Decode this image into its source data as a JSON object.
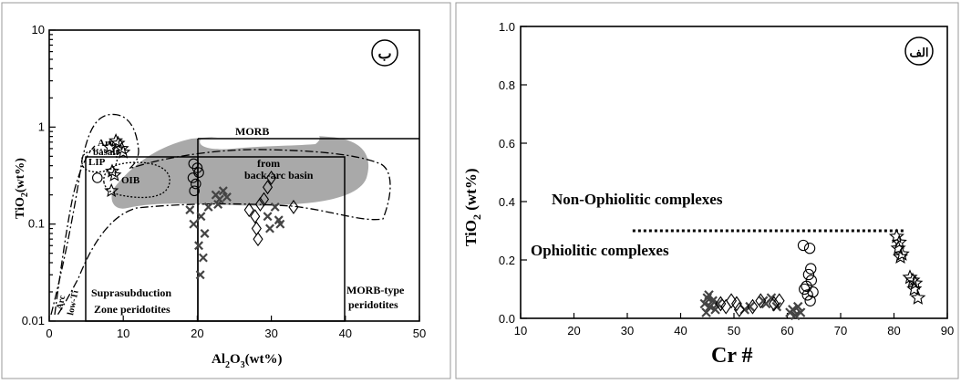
{
  "chart_data": [
    {
      "type": "scatter",
      "panel_mark": "ب",
      "xlabel": "Al",
      "xlabel_sub1": "2",
      "xlabel_mid": "O",
      "xlabel_sub2": "3",
      "xlabel_end": "(wt%)",
      "ylabel": "TiO",
      "ylabel_sub": "2",
      "ylabel_end": "(wt%)",
      "xlim": [
        0,
        50
      ],
      "ylim": [
        0.01,
        10
      ],
      "yscale": "log",
      "x_ticks": [
        "0",
        "10",
        "20",
        "30",
        "40",
        "50"
      ],
      "y_ticks": [
        "0.01",
        "0.1",
        "1",
        "10"
      ],
      "field_labels": {
        "lip": "LIP",
        "oib": "OIB",
        "morb": "MORB",
        "arc_basalt_1": "Arc",
        "arc_basalt_2": "basalt",
        "backarc_1": "from",
        "backarc_2": "back-arc basin",
        "arc_low_ti_1": "Arc",
        "arc_low_ti_2": "low-Ti",
        "ssz_1": "Suprasubduction",
        "ssz_2": "Zone peridotites",
        "morb_type_1": "MORB-type",
        "morb_type_2": "peridotites"
      },
      "series": [
        {
          "marker": "star",
          "points": [
            [
              8.2,
              0.62
            ],
            [
              9.3,
              0.68
            ],
            [
              10.0,
              0.55
            ],
            [
              9.0,
              0.72
            ],
            [
              8.8,
              0.32
            ],
            [
              9.8,
              0.6
            ],
            [
              8.5,
              0.35
            ],
            [
              8.4,
              0.22
            ]
          ]
        },
        {
          "marker": "circle",
          "points": [
            [
              6.5,
              0.3
            ],
            [
              19.5,
              0.42
            ],
            [
              20.0,
              0.38
            ],
            [
              19.4,
              0.3
            ],
            [
              19.8,
              0.26
            ],
            [
              19.6,
              0.22
            ],
            [
              20.2,
              0.34
            ]
          ]
        },
        {
          "marker": "cross",
          "points": [
            [
              19.0,
              0.14
            ],
            [
              19.5,
              0.1
            ],
            [
              20.5,
              0.12
            ],
            [
              21.0,
              0.08
            ],
            [
              20.2,
              0.06
            ],
            [
              20.8,
              0.045
            ],
            [
              21.5,
              0.15
            ],
            [
              22.5,
              0.2
            ],
            [
              23.0,
              0.18
            ],
            [
              23.5,
              0.22
            ],
            [
              24.0,
              0.19
            ],
            [
              22.8,
              0.16
            ],
            [
              29.5,
              0.12
            ],
            [
              30.5,
              0.15
            ],
            [
              31.0,
              0.11
            ],
            [
              29.8,
              0.09
            ],
            [
              31.2,
              0.1
            ],
            [
              20.4,
              0.03
            ]
          ]
        },
        {
          "marker": "diamond",
          "points": [
            [
              27.0,
              0.14
            ],
            [
              27.8,
              0.12
            ],
            [
              28.5,
              0.16
            ],
            [
              28.0,
              0.09
            ],
            [
              28.2,
              0.07
            ],
            [
              29.0,
              0.18
            ],
            [
              33.0,
              0.15
            ],
            [
              29.5,
              0.24
            ],
            [
              30.0,
              0.3
            ]
          ]
        }
      ]
    },
    {
      "type": "scatter",
      "panel_mark": "الف",
      "xlabel": "Cr #",
      "ylabel": "TiO",
      "ylabel_sub": "2",
      "ylabel_end": " (wt%)",
      "xlim": [
        10,
        90
      ],
      "ylim": [
        0,
        1.0
      ],
      "x_ticks": [
        "10",
        "20",
        "30",
        "40",
        "50",
        "60",
        "70",
        "80",
        "90"
      ],
      "y_ticks": [
        "0.0",
        "0.2",
        "0.4",
        "0.6",
        "0.8",
        "1.0"
      ],
      "annotations": [
        "Non-Ophiolitic complexes",
        "Ophiolitic complexes"
      ],
      "dotted_line": {
        "x": [
          31,
          82
        ],
        "y": 0.3
      },
      "series": [
        {
          "marker": "star",
          "points": [
            [
              80.5,
              0.28
            ],
            [
              81.0,
              0.26
            ],
            [
              80.8,
              0.24
            ],
            [
              81.5,
              0.22
            ],
            [
              81.2,
              0.21
            ],
            [
              83.0,
              0.14
            ],
            [
              83.5,
              0.13
            ],
            [
              84.0,
              0.12
            ],
            [
              83.8,
              0.1
            ],
            [
              84.5,
              0.07
            ]
          ]
        },
        {
          "marker": "circle",
          "points": [
            [
              63.0,
              0.25
            ],
            [
              64.2,
              0.24
            ],
            [
              63.6,
              0.11
            ],
            [
              64.4,
              0.17
            ],
            [
              64.0,
              0.15
            ],
            [
              64.5,
              0.13
            ],
            [
              63.2,
              0.1
            ],
            [
              64.8,
              0.09
            ],
            [
              63.8,
              0.08
            ],
            [
              64.3,
              0.06
            ]
          ]
        },
        {
          "marker": "cross",
          "points": [
            [
              44.5,
              0.05
            ],
            [
              45.0,
              0.07
            ],
            [
              45.5,
              0.04
            ],
            [
              46.0,
              0.06
            ],
            [
              46.5,
              0.03
            ],
            [
              44.8,
              0.02
            ],
            [
              47.0,
              0.05
            ],
            [
              45.3,
              0.08
            ],
            [
              52.0,
              0.03
            ],
            [
              53.0,
              0.04
            ],
            [
              55.5,
              0.06
            ],
            [
              56.0,
              0.05
            ],
            [
              57.0,
              0.07
            ],
            [
              58.0,
              0.04
            ],
            [
              60.5,
              0.02
            ],
            [
              61.0,
              0.03
            ],
            [
              62.0,
              0.04
            ],
            [
              61.5,
              0.01
            ],
            [
              62.5,
              0.02
            ]
          ]
        },
        {
          "marker": "diamond",
          "points": [
            [
              47.5,
              0.05
            ],
            [
              48.5,
              0.04
            ],
            [
              49.5,
              0.06
            ],
            [
              50.5,
              0.05
            ],
            [
              51.0,
              0.03
            ],
            [
              53.5,
              0.04
            ],
            [
              55.0,
              0.06
            ],
            [
              58.5,
              0.06
            ],
            [
              57.5,
              0.05
            ]
          ]
        }
      ]
    }
  ]
}
